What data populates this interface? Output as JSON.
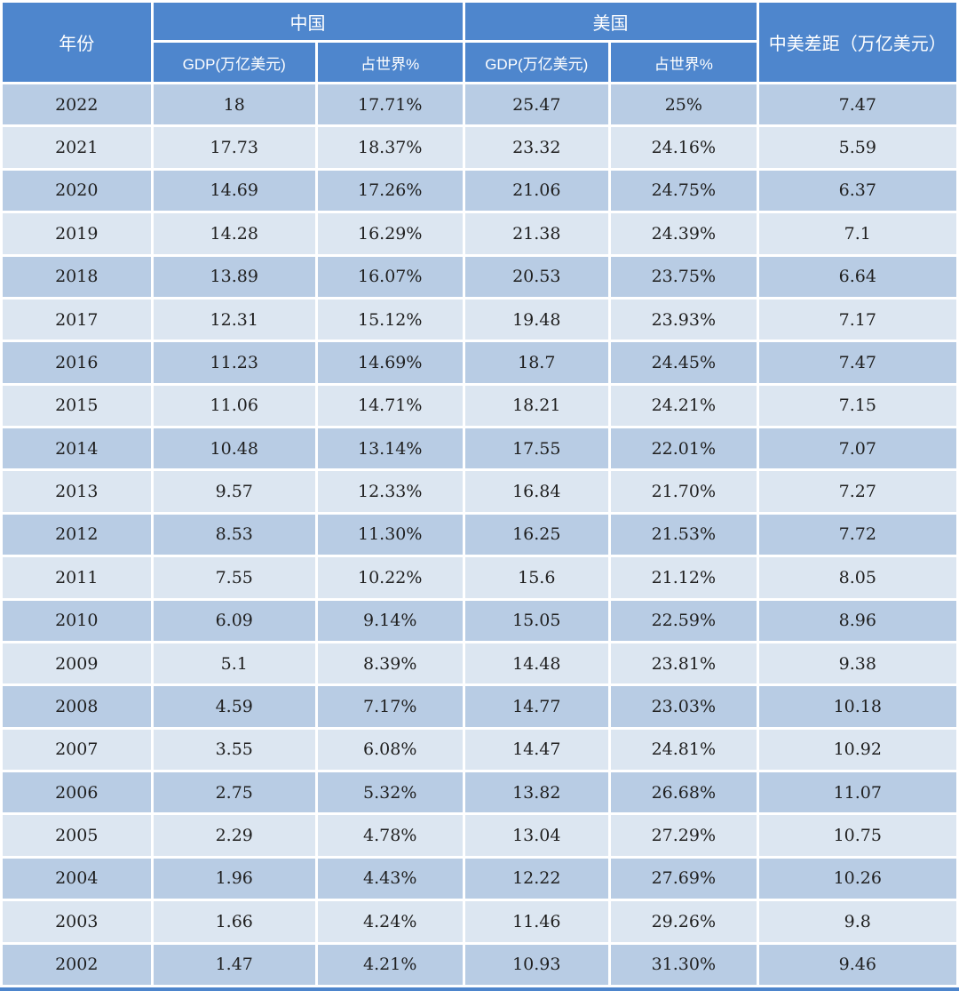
{
  "colors": {
    "header_bg": "#4e86cd",
    "header_text": "#ffffff",
    "row_dark": "#b8cce4",
    "row_light": "#dce6f1",
    "body_text": "#1f1f1f",
    "gridline": "#ffffff",
    "bottom_border": "#4d85cc"
  },
  "chart_data": {
    "type": "table",
    "header": {
      "year": "年份",
      "china": "中国",
      "usa": "美国",
      "gap": "中美差距（万亿美元）",
      "gdp": "GDP(万亿美元)",
      "share": "占世界%"
    },
    "columns": [
      "年份",
      "中国 GDP(万亿美元)",
      "中国 占世界%",
      "美国 GDP(万亿美元)",
      "美国 占世界%",
      "中美差距（万亿美元）"
    ],
    "rows": [
      [
        "2022",
        "18",
        "17.71%",
        "25.47",
        "25%",
        "7.47"
      ],
      [
        "2021",
        "17.73",
        "18.37%",
        "23.32",
        "24.16%",
        "5.59"
      ],
      [
        "2020",
        "14.69",
        "17.26%",
        "21.06",
        "24.75%",
        "6.37"
      ],
      [
        "2019",
        "14.28",
        "16.29%",
        "21.38",
        "24.39%",
        "7.1"
      ],
      [
        "2018",
        "13.89",
        "16.07%",
        "20.53",
        "23.75%",
        "6.64"
      ],
      [
        "2017",
        "12.31",
        "15.12%",
        "19.48",
        "23.93%",
        "7.17"
      ],
      [
        "2016",
        "11.23",
        "14.69%",
        "18.7",
        "24.45%",
        "7.47"
      ],
      [
        "2015",
        "11.06",
        "14.71%",
        "18.21",
        "24.21%",
        "7.15"
      ],
      [
        "2014",
        "10.48",
        "13.14%",
        "17.55",
        "22.01%",
        "7.07"
      ],
      [
        "2013",
        "9.57",
        "12.33%",
        "16.84",
        "21.70%",
        "7.27"
      ],
      [
        "2012",
        "8.53",
        "11.30%",
        "16.25",
        "21.53%",
        "7.72"
      ],
      [
        "2011",
        "7.55",
        "10.22%",
        "15.6",
        "21.12%",
        "8.05"
      ],
      [
        "2010",
        "6.09",
        "9.14%",
        "15.05",
        "22.59%",
        "8.96"
      ],
      [
        "2009",
        "5.1",
        "8.39%",
        "14.48",
        "23.81%",
        "9.38"
      ],
      [
        "2008",
        "4.59",
        "7.17%",
        "14.77",
        "23.03%",
        "10.18"
      ],
      [
        "2007",
        "3.55",
        "6.08%",
        "14.47",
        "24.81%",
        "10.92"
      ],
      [
        "2006",
        "2.75",
        "5.32%",
        "13.82",
        "26.68%",
        "11.07"
      ],
      [
        "2005",
        "2.29",
        "4.78%",
        "13.04",
        "27.29%",
        "10.75"
      ],
      [
        "2004",
        "1.96",
        "4.43%",
        "12.22",
        "27.69%",
        "10.26"
      ],
      [
        "2003",
        "1.66",
        "4.24%",
        "11.46",
        "29.26%",
        "9.8"
      ],
      [
        "2002",
        "1.47",
        "4.21%",
        "10.93",
        "31.30%",
        "9.46"
      ]
    ]
  }
}
